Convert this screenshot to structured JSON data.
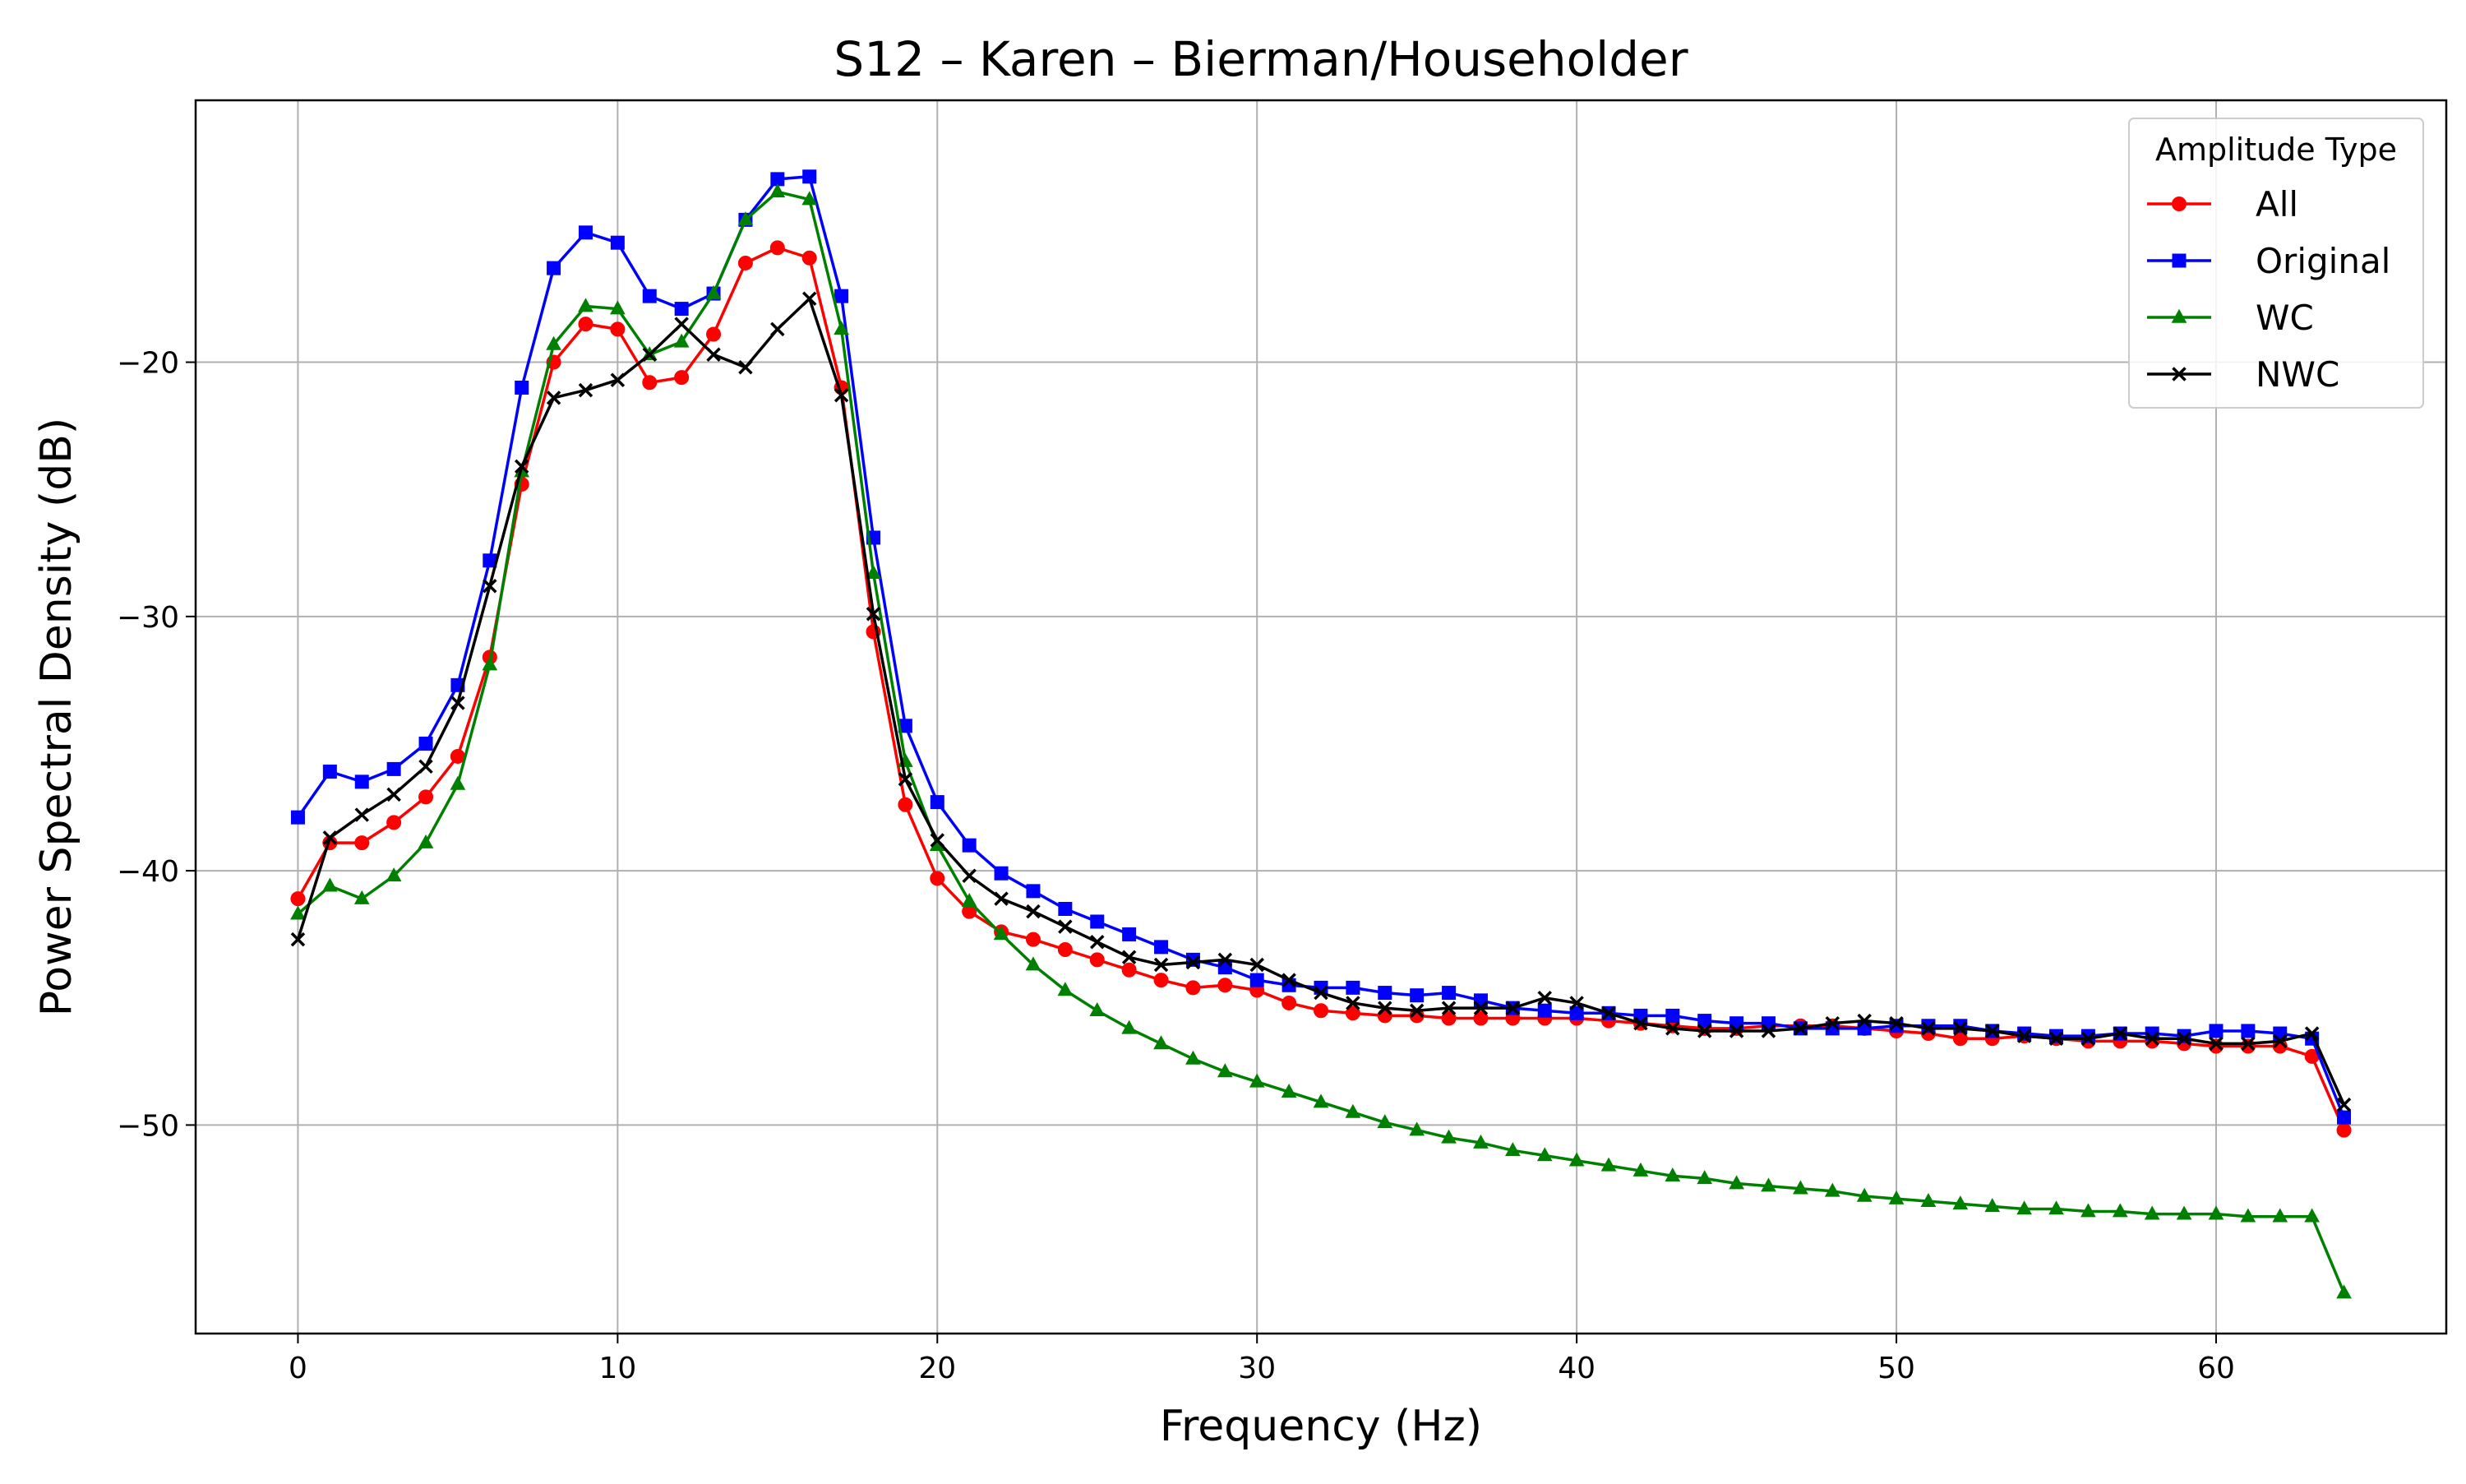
{
  "chart_data": {
    "type": "line",
    "title": "S12 – Karen – Bierman/Householder",
    "xlabel": "Frequency (Hz)",
    "ylabel": "Power Spectral Density (dB)",
    "xlim": [
      -3.2,
      67.2
    ],
    "ylim": [
      -58.2,
      -9.7
    ],
    "xticks": [
      0,
      10,
      20,
      30,
      40,
      50,
      60
    ],
    "yticks": [
      -50,
      -40,
      -30,
      -20
    ],
    "xtick_labels": [
      "0",
      "10",
      "20",
      "30",
      "40",
      "50",
      "60"
    ],
    "ytick_labels": [
      "−50",
      "−40",
      "−30",
      "−20"
    ],
    "grid": true,
    "legend": {
      "title": "Amplitude Type",
      "position": "top-right"
    },
    "x": [
      0,
      1,
      2,
      3,
      4,
      5,
      6,
      7,
      8,
      9,
      10,
      11,
      12,
      13,
      14,
      15,
      16,
      17,
      18,
      19,
      20,
      21,
      22,
      23,
      24,
      25,
      26,
      27,
      28,
      29,
      30,
      31,
      32,
      33,
      34,
      35,
      36,
      37,
      38,
      39,
      40,
      41,
      42,
      43,
      44,
      45,
      46,
      47,
      48,
      49,
      50,
      51,
      52,
      53,
      54,
      55,
      56,
      57,
      58,
      59,
      60,
      61,
      62,
      63,
      64
    ],
    "series": [
      {
        "name": "All",
        "color": "#ff0000",
        "marker": "circle",
        "values": [
          -41.1,
          -38.9,
          -38.9,
          -38.1,
          -37.1,
          -35.5,
          -31.6,
          -24.8,
          -20.0,
          -18.5,
          -18.7,
          -20.8,
          -20.6,
          -18.9,
          -16.1,
          -15.5,
          -15.9,
          -21.0,
          -30.6,
          -37.4,
          -40.3,
          -41.6,
          -42.4,
          -42.7,
          -43.1,
          -43.5,
          -43.9,
          -44.3,
          -44.6,
          -44.5,
          -44.7,
          -45.2,
          -45.5,
          -45.6,
          -45.7,
          -45.7,
          -45.8,
          -45.8,
          -45.8,
          -45.8,
          -45.8,
          -45.9,
          -46.0,
          -46.1,
          -46.2,
          -46.2,
          -46.1,
          -46.1,
          -46.1,
          -46.2,
          -46.3,
          -46.4,
          -46.6,
          -46.6,
          -46.5,
          -46.6,
          -46.7,
          -46.7,
          -46.7,
          -46.8,
          -46.9,
          -46.9,
          -46.9,
          -47.3,
          -50.2
        ]
      },
      {
        "name": "Original",
        "color": "#0000ff",
        "marker": "square",
        "values": [
          -37.9,
          -36.1,
          -36.5,
          -36.0,
          -35.0,
          -32.7,
          -27.8,
          -21.0,
          -16.3,
          -14.9,
          -15.3,
          -17.4,
          -17.9,
          -17.3,
          -14.4,
          -12.8,
          -12.7,
          -17.4,
          -26.9,
          -34.3,
          -37.3,
          -39.0,
          -40.1,
          -40.8,
          -41.5,
          -42.0,
          -42.5,
          -43.0,
          -43.5,
          -43.8,
          -44.3,
          -44.5,
          -44.6,
          -44.6,
          -44.8,
          -44.9,
          -44.8,
          -45.1,
          -45.4,
          -45.5,
          -45.6,
          -45.6,
          -45.7,
          -45.7,
          -45.9,
          -46.0,
          -46.0,
          -46.2,
          -46.2,
          -46.2,
          -46.1,
          -46.1,
          -46.1,
          -46.3,
          -46.4,
          -46.5,
          -46.5,
          -46.4,
          -46.4,
          -46.5,
          -46.3,
          -46.3,
          -46.4,
          -46.6,
          -49.7
        ]
      },
      {
        "name": "WC",
        "color": "#008000",
        "marker": "triangle",
        "values": [
          -41.7,
          -40.6,
          -41.1,
          -40.2,
          -38.9,
          -36.6,
          -31.9,
          -24.3,
          -19.3,
          -17.8,
          -17.9,
          -19.7,
          -19.2,
          -17.3,
          -14.4,
          -13.3,
          -13.6,
          -18.7,
          -28.3,
          -35.7,
          -39.0,
          -41.2,
          -42.5,
          -43.7,
          -44.7,
          -45.5,
          -46.2,
          -46.8,
          -47.4,
          -47.9,
          -48.3,
          -48.7,
          -49.1,
          -49.5,
          -49.9,
          -50.2,
          -50.5,
          -50.7,
          -51.0,
          -51.2,
          -51.4,
          -51.6,
          -51.8,
          -52.0,
          -52.1,
          -52.3,
          -52.4,
          -52.5,
          -52.6,
          -52.8,
          -52.9,
          -53.0,
          -53.1,
          -53.2,
          -53.3,
          -53.3,
          -53.4,
          -53.4,
          -53.5,
          -53.5,
          -53.5,
          -53.6,
          -53.6,
          -53.6,
          -56.6
        ]
      },
      {
        "name": "NWC",
        "color": "#000000",
        "marker": "x",
        "values": [
          -42.7,
          -38.7,
          -37.8,
          -37.0,
          -35.9,
          -33.4,
          -28.8,
          -24.1,
          -21.4,
          -21.1,
          -20.7,
          -19.7,
          -18.5,
          -19.7,
          -20.2,
          -18.7,
          -17.5,
          -21.3,
          -29.9,
          -36.4,
          -38.8,
          -40.2,
          -41.1,
          -41.6,
          -42.2,
          -42.8,
          -43.4,
          -43.7,
          -43.6,
          -43.5,
          -43.7,
          -44.3,
          -44.8,
          -45.2,
          -45.4,
          -45.5,
          -45.4,
          -45.4,
          -45.4,
          -45.0,
          -45.2,
          -45.6,
          -46.0,
          -46.2,
          -46.3,
          -46.3,
          -46.3,
          -46.2,
          -46.0,
          -45.9,
          -46.0,
          -46.2,
          -46.2,
          -46.3,
          -46.5,
          -46.6,
          -46.6,
          -46.4,
          -46.6,
          -46.6,
          -46.8,
          -46.8,
          -46.7,
          -46.4,
          -49.2
        ]
      }
    ]
  }
}
